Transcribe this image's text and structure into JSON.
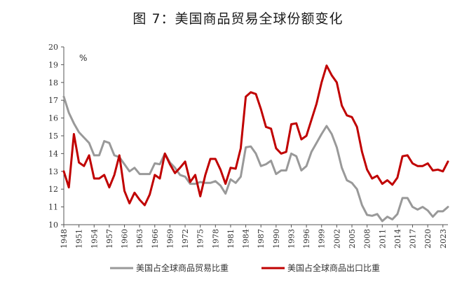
{
  "chart_data": {
    "type": "line",
    "title": "图 7：美国商品贸易全球份额变化",
    "unit_label": "%",
    "xlabel": "",
    "ylabel": "",
    "ylim": [
      10,
      20
    ],
    "yticks": [
      10,
      11,
      12,
      13,
      14,
      15,
      16,
      17,
      18,
      19,
      20
    ],
    "xlim": [
      1948,
      2024
    ],
    "xticks": [
      1948,
      1951,
      1954,
      1957,
      1960,
      1963,
      1966,
      1969,
      1972,
      1975,
      1978,
      1981,
      1984,
      1987,
      1990,
      1993,
      1996,
      1999,
      2002,
      2005,
      2008,
      2011,
      2014,
      2017,
      2020,
      2023
    ],
    "grid": false,
    "legend_position": "bottom",
    "x": [
      1948,
      1949,
      1950,
      1951,
      1952,
      1953,
      1954,
      1955,
      1956,
      1957,
      1958,
      1959,
      1960,
      1961,
      1962,
      1963,
      1964,
      1965,
      1966,
      1967,
      1968,
      1969,
      1970,
      1971,
      1972,
      1973,
      1974,
      1975,
      1976,
      1977,
      1978,
      1979,
      1980,
      1981,
      1982,
      1983,
      1984,
      1985,
      1986,
      1987,
      1988,
      1989,
      1990,
      1991,
      1992,
      1993,
      1994,
      1995,
      1996,
      1997,
      1998,
      1999,
      2000,
      2001,
      2002,
      2003,
      2004,
      2005,
      2006,
      2007,
      2008,
      2009,
      2010,
      2011,
      2012,
      2013,
      2014,
      2015,
      2016,
      2017,
      2018,
      2019,
      2020,
      2021,
      2022,
      2023,
      2024
    ],
    "series": [
      {
        "name": "美国占全球商品贸易比重",
        "color": "#999999",
        "values": [
          17.2,
          16.3,
          15.7,
          15.2,
          14.9,
          14.6,
          13.9,
          13.9,
          14.7,
          14.6,
          13.9,
          13.8,
          13.4,
          13.0,
          13.2,
          12.85,
          12.85,
          12.85,
          13.45,
          13.4,
          14.0,
          13.5,
          13.2,
          12.8,
          12.7,
          12.3,
          12.3,
          12.4,
          12.35,
          12.35,
          12.45,
          12.2,
          11.75,
          12.55,
          12.35,
          12.7,
          14.35,
          14.4,
          14.0,
          13.3,
          13.4,
          13.6,
          12.85,
          13.05,
          13.05,
          14.0,
          13.85,
          13.05,
          13.3,
          14.1,
          14.6,
          15.1,
          15.55,
          15.1,
          14.35,
          13.2,
          12.5,
          12.35,
          12.0,
          11.1,
          10.55,
          10.5,
          10.6,
          10.2,
          10.45,
          10.3,
          10.6,
          11.5,
          11.5,
          11.0,
          10.85,
          11.0,
          10.8,
          10.45,
          10.75,
          10.75,
          11.0
        ]
      },
      {
        "name": "美国占全球商品出口比重",
        "color": "#c00000",
        "values": [
          13.0,
          12.1,
          15.1,
          13.5,
          13.3,
          13.9,
          12.6,
          12.6,
          12.8,
          12.1,
          12.8,
          13.9,
          11.9,
          11.2,
          11.8,
          11.4,
          11.1,
          11.7,
          12.8,
          12.6,
          14.0,
          13.4,
          12.9,
          13.2,
          13.55,
          12.4,
          12.8,
          11.6,
          12.8,
          13.7,
          13.7,
          13.1,
          12.3,
          13.2,
          13.15,
          14.3,
          17.2,
          17.45,
          17.35,
          16.5,
          15.5,
          15.4,
          14.3,
          14.0,
          14.1,
          15.65,
          15.7,
          14.8,
          15.0,
          15.9,
          16.8,
          18.0,
          18.95,
          18.4,
          18.0,
          16.7,
          16.15,
          16.05,
          15.5,
          14.1,
          13.1,
          12.6,
          12.75,
          12.3,
          12.5,
          12.25,
          12.65,
          13.85,
          13.9,
          13.45,
          13.3,
          13.3,
          13.45,
          13.05,
          13.1,
          13.0,
          13.55
        ]
      }
    ]
  }
}
